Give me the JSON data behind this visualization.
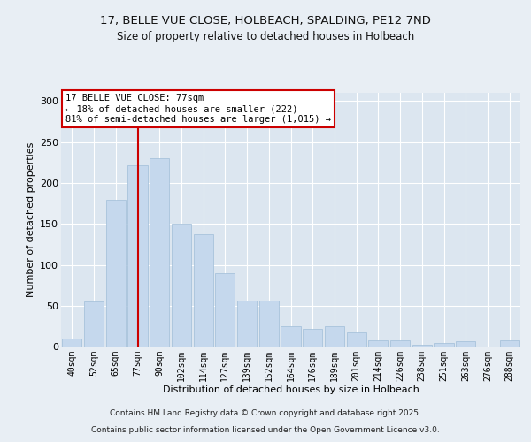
{
  "title1": "17, BELLE VUE CLOSE, HOLBEACH, SPALDING, PE12 7ND",
  "title2": "Size of property relative to detached houses in Holbeach",
  "xlabel": "Distribution of detached houses by size in Holbeach",
  "ylabel": "Number of detached properties",
  "bar_labels": [
    "40sqm",
    "52sqm",
    "65sqm",
    "77sqm",
    "90sqm",
    "102sqm",
    "114sqm",
    "127sqm",
    "139sqm",
    "152sqm",
    "164sqm",
    "176sqm",
    "189sqm",
    "201sqm",
    "214sqm",
    "226sqm",
    "238sqm",
    "251sqm",
    "263sqm",
    "276sqm",
    "288sqm"
  ],
  "bar_values": [
    10,
    55,
    180,
    222,
    230,
    150,
    137,
    90,
    57,
    57,
    25,
    22,
    25,
    18,
    8,
    8,
    3,
    5,
    7,
    0,
    8
  ],
  "bar_color": "#c5d8ed",
  "bar_edgecolor": "#a0bdd8",
  "highlight_index": 3,
  "highlight_color": "#cc0000",
  "annotation_title": "17 BELLE VUE CLOSE: 77sqm",
  "annotation_line1": "← 18% of detached houses are smaller (222)",
  "annotation_line2": "81% of semi-detached houses are larger (1,015) →",
  "annotation_box_color": "#cc0000",
  "ylim": [
    0,
    310
  ],
  "yticks": [
    0,
    50,
    100,
    150,
    200,
    250,
    300
  ],
  "footer1": "Contains HM Land Registry data © Crown copyright and database right 2025.",
  "footer2": "Contains public sector information licensed under the Open Government Licence v3.0.",
  "background_color": "#e8eef4",
  "plot_bg_color": "#dce6f0",
  "title_fontsize": 9.5,
  "subtitle_fontsize": 8.5
}
